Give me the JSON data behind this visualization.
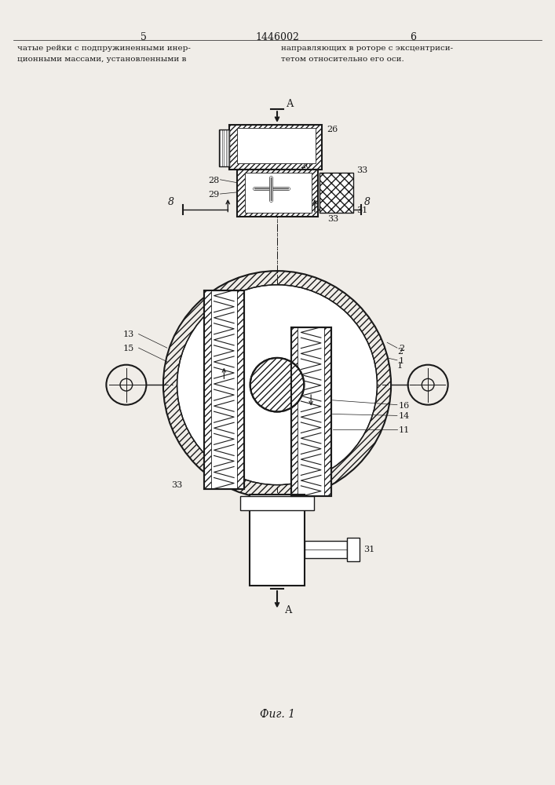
{
  "title_page_num_left": "5",
  "title_patent_num": "1446002",
  "title_page_num_right": "6",
  "text_left_line1": "чатые рейки с подпружиненными инер-",
  "text_left_line2": "ционными массами, установленными в",
  "text_right_line1": "направляющих в роторе с эксцентриси-",
  "text_right_line2": "тетом относительно его оси.",
  "fig_caption": "Фиг. 1",
  "bg_color": "#f0ede8",
  "line_color": "#1a1a1a"
}
